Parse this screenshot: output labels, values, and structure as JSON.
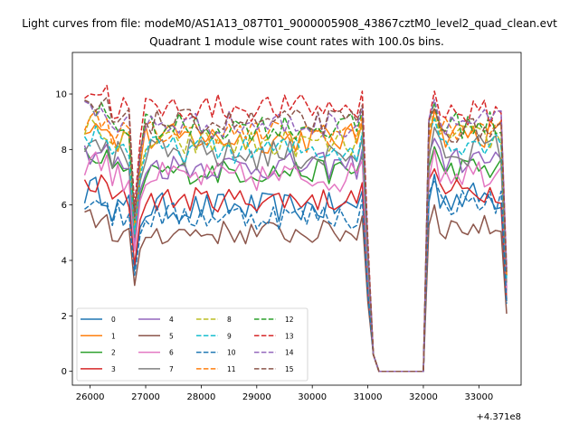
{
  "page": {
    "suptitle": "Light curves from file: modeM0/AS1A13_087T01_9000005908_43867cztM0_level2_quad_clean.evt"
  },
  "chart_data": {
    "type": "line",
    "title": "Quadrant 1 module wise count rates with 100.0s bins.",
    "xlabel": "",
    "ylabel": "",
    "x_offset_label": "+4.371e8",
    "xlim": [
      25680,
      33760
    ],
    "ylim": [
      -0.5,
      11.5
    ],
    "xticks": [
      26000,
      27000,
      28000,
      29000,
      30000,
      31000,
      32000,
      33000
    ],
    "xtick_labels": [
      "26000",
      "27000",
      "28000",
      "29000",
      "30000",
      "31000",
      "32000",
      "33000"
    ],
    "yticks": [
      0,
      2,
      4,
      6,
      8,
      10
    ],
    "ytick_labels": [
      "0",
      "2",
      "4",
      "6",
      "8",
      "10"
    ],
    "grid": false,
    "legend": {
      "placement": "lower-left",
      "columns": 4
    },
    "x_segment_1": {
      "start": 25900,
      "end": 31000,
      "step": 100
    },
    "x_segment_2": {
      "start": 32000,
      "end": 33500,
      "step": 100
    },
    "series": [
      {
        "name": "0",
        "color": "#1f77b4",
        "dash": "solid",
        "level": 5.9,
        "amp": 0.55,
        "level2": 6.3
      },
      {
        "name": "1",
        "color": "#ff7f0e",
        "dash": "solid",
        "level": 8.4,
        "amp": 0.55,
        "level2": 8.6
      },
      {
        "name": "2",
        "color": "#2ca02c",
        "dash": "solid",
        "level": 7.2,
        "amp": 0.45,
        "level2": 7.3
      },
      {
        "name": "3",
        "color": "#d62728",
        "dash": "solid",
        "level": 6.2,
        "amp": 0.45,
        "level2": 6.5
      },
      {
        "name": "4",
        "color": "#9467bd",
        "dash": "solid",
        "level": 7.4,
        "amp": 0.5,
        "level2": 7.6
      },
      {
        "name": "5",
        "color": "#8c564b",
        "dash": "solid",
        "level": 5.0,
        "amp": 0.45,
        "level2": 5.2
      },
      {
        "name": "6",
        "color": "#e377c2",
        "dash": "solid",
        "level": 7.0,
        "amp": 0.55,
        "level2": 7.2
      },
      {
        "name": "7",
        "color": "#7f7f7f",
        "dash": "solid",
        "level": 7.8,
        "amp": 0.6,
        "level2": 8.0
      },
      {
        "name": "8",
        "color": "#bcbd22",
        "dash": "dashed",
        "level": 8.2,
        "amp": 0.5,
        "level2": 8.4
      },
      {
        "name": "9",
        "color": "#17becf",
        "dash": "dashed",
        "level": 8.0,
        "amp": 0.5,
        "level2": 8.3
      },
      {
        "name": "10",
        "color": "#1f77b4",
        "dash": "dashed",
        "level": 5.6,
        "amp": 0.5,
        "level2": 6.1
      },
      {
        "name": "11",
        "color": "#ff7f0e",
        "dash": "dashed",
        "level": 8.6,
        "amp": 0.45,
        "level2": 8.7
      },
      {
        "name": "12",
        "color": "#2ca02c",
        "dash": "dashed",
        "level": 8.8,
        "amp": 0.5,
        "level2": 8.9
      },
      {
        "name": "13",
        "color": "#d62728",
        "dash": "dashed",
        "level": 9.5,
        "amp": 0.5,
        "level2": 9.3
      },
      {
        "name": "14",
        "color": "#9467bd",
        "dash": "dashed",
        "level": 8.9,
        "amp": 0.5,
        "level2": 9.0
      },
      {
        "name": "15",
        "color": "#8c564b",
        "dash": "dashed",
        "level": 9.0,
        "amp": 0.45,
        "level2": 8.7
      }
    ]
  }
}
